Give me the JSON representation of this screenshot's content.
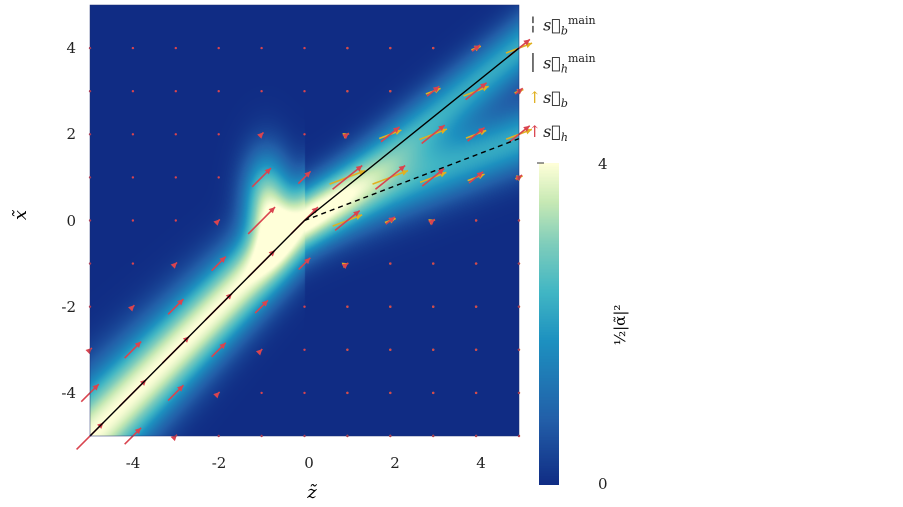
{
  "chart_data": {
    "type": "heatmap",
    "title": "",
    "xlabel": "z̃",
    "ylabel": "x̃",
    "xlim": [
      -5,
      5
    ],
    "ylim": [
      -5,
      5
    ],
    "xticks": [
      "-4",
      "-2",
      "0",
      "2",
      "4"
    ],
    "yticks": [
      "4",
      "2",
      "0",
      "-2",
      "-4"
    ],
    "colorbar": {
      "label": "½|α̃|²",
      "min": 0,
      "max": 4,
      "tick_labels": [
        "4",
        "0"
      ],
      "colormap": "YlGnBu"
    },
    "lines": [
      {
        "name": "s_h main",
        "style": "solid",
        "points": [
          [
            -5,
            -5
          ],
          [
            0,
            0
          ],
          [
            5,
            4
          ]
        ]
      },
      {
        "name": "s_b main",
        "style": "dashed",
        "points": [
          [
            0,
            0
          ],
          [
            5,
            1.9
          ]
        ]
      }
    ],
    "vector_fields": [
      {
        "name": "s_h",
        "color": "#d9444f",
        "grid_step": 1,
        "direction_left": [
          1,
          1
        ],
        "direction_right": [
          1,
          0.8
        ]
      },
      {
        "name": "s_b",
        "color": "#e0b020",
        "grid_step": 1,
        "direction_right": [
          1,
          0.38
        ]
      }
    ],
    "legend": {
      "placement": "right",
      "entries": [
        {
          "symbol": "dashed",
          "base": "s⃗",
          "sub": "b",
          "sup": "main"
        },
        {
          "symbol": "solid",
          "base": "s⃗",
          "sub": "h",
          "sup": "main"
        },
        {
          "symbol": "arrow-yellow",
          "base": "s⃗",
          "sub": "b",
          "sup": ""
        },
        {
          "symbol": "arrow-red",
          "base": "s⃗",
          "sub": "h",
          "sup": ""
        }
      ]
    }
  }
}
